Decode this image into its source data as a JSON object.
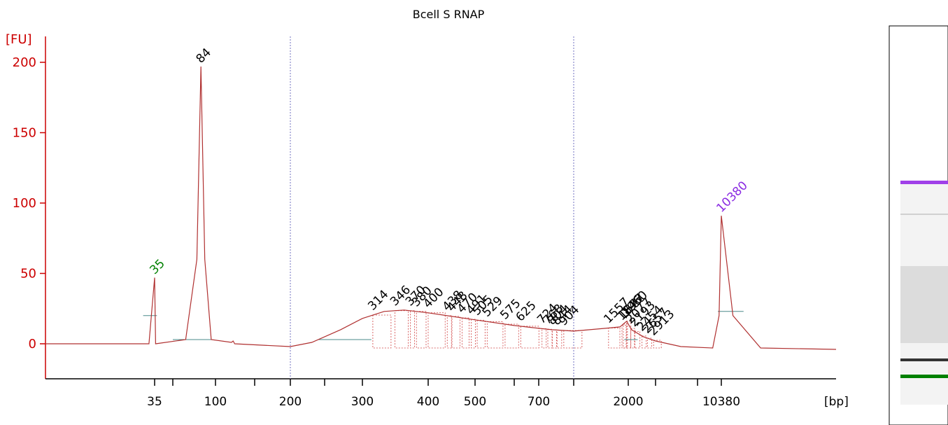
{
  "chart_data": {
    "type": "line",
    "title": "Bcell S RNAP",
    "ylabel": "[FU]",
    "xlabel": "[bp]",
    "ylim": [
      -25,
      218
    ],
    "yticks": [
      0,
      50,
      100,
      150,
      200
    ],
    "xticks": [
      {
        "label": "35",
        "x": 35
      },
      {
        "label": "",
        "x": 60
      },
      {
        "label": "100",
        "x": 100
      },
      {
        "label": "",
        "x": 150
      },
      {
        "label": "200",
        "x": 200
      },
      {
        "label": "",
        "x": 250
      },
      {
        "label": "300",
        "x": 300
      },
      {
        "label": "400",
        "x": 400
      },
      {
        "label": "500",
        "x": 500
      },
      {
        "label": "",
        "x": 600
      },
      {
        "label": "700",
        "x": 700
      },
      {
        "label": "",
        "x": 1000
      },
      {
        "label": "2000",
        "x": 2000
      },
      {
        "label": "",
        "x": 3000
      },
      {
        "label": "",
        "x": 7000
      },
      {
        "label": "10380",
        "x": 10380
      }
    ],
    "vertical_reference_lines_bp": [
      200,
      1000
    ],
    "marker_peaks": [
      {
        "label": "35",
        "x": 35,
        "y": 47,
        "color": "#008000"
      },
      {
        "label": "10380",
        "x": 10380,
        "y": 91,
        "color": "#8a2be2"
      }
    ],
    "main_peak": {
      "label": "84",
      "x": 84,
      "y": 197
    },
    "smear_peaks": [
      {
        "label": "314",
        "x": 314
      },
      {
        "label": "346",
        "x": 346
      },
      {
        "label": "370",
        "x": 370
      },
      {
        "label": "380",
        "x": 380
      },
      {
        "label": "400",
        "x": 400
      },
      {
        "label": "438",
        "x": 438
      },
      {
        "label": "448",
        "x": 448
      },
      {
        "label": "470",
        "x": 470
      },
      {
        "label": "491",
        "x": 491
      },
      {
        "label": "505",
        "x": 505
      },
      {
        "label": "529",
        "x": 529
      },
      {
        "label": "575",
        "x": 575
      },
      {
        "label": "625",
        "x": 625
      },
      {
        "label": "724",
        "x": 724
      },
      {
        "label": "768",
        "x": 768
      },
      {
        "label": "804",
        "x": 804
      },
      {
        "label": "844",
        "x": 844
      },
      {
        "label": "904",
        "x": 904
      },
      {
        "label": "1557",
        "x": 1557
      },
      {
        "label": "1846",
        "x": 1846
      },
      {
        "label": "1877",
        "x": 1877
      },
      {
        "label": "1960",
        "x": 1960
      },
      {
        "label": "2077",
        "x": 2077
      },
      {
        "label": "2193",
        "x": 2193
      },
      {
        "label": "2454",
        "x": 2454
      },
      {
        "label": "2657",
        "x": 2657
      },
      {
        "label": "2913",
        "x": 2913
      }
    ],
    "trace": [
      [
        20,
        0
      ],
      [
        34,
        0
      ],
      [
        35,
        47
      ],
      [
        36,
        0
      ],
      [
        70,
        3
      ],
      [
        80,
        60
      ],
      [
        84,
        197
      ],
      [
        88,
        60
      ],
      [
        95,
        3
      ],
      [
        118,
        1
      ],
      [
        120,
        2
      ],
      [
        122,
        0
      ],
      [
        200,
        -2
      ],
      [
        230,
        1
      ],
      [
        270,
        10
      ],
      [
        300,
        18
      ],
      [
        330,
        23
      ],
      [
        360,
        24
      ],
      [
        400,
        22
      ],
      [
        500,
        17
      ],
      [
        600,
        13
      ],
      [
        700,
        11
      ],
      [
        800,
        10
      ],
      [
        1000,
        9
      ],
      [
        1500,
        11
      ],
      [
        1800,
        12
      ],
      [
        1960,
        16
      ],
      [
        2100,
        10
      ],
      [
        2500,
        5
      ],
      [
        3000,
        2
      ],
      [
        5000,
        -2
      ],
      [
        9000,
        -3
      ],
      [
        10000,
        20
      ],
      [
        10380,
        91
      ],
      [
        10700,
        20
      ],
      [
        11500,
        -3
      ],
      [
        14000,
        -4
      ]
    ],
    "grid": false,
    "gel_lane": {
      "upper_marker_color": "#a040e8",
      "lower_marker_color": "#008000"
    }
  }
}
